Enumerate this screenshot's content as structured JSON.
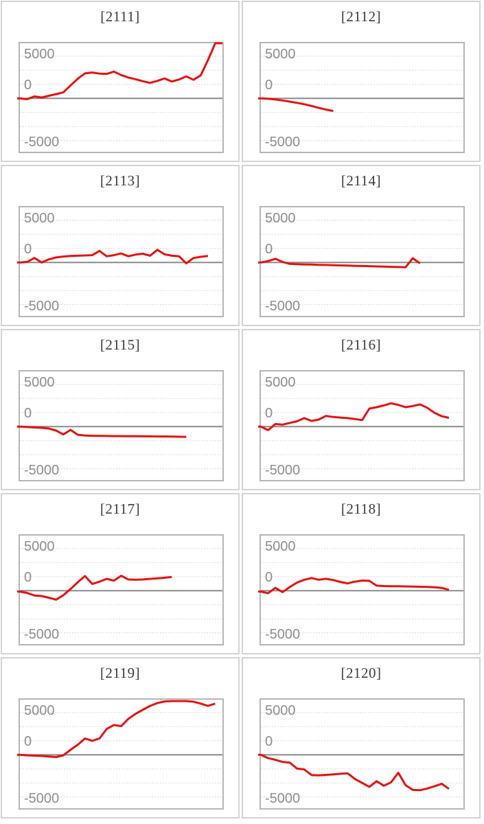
{
  "page": {
    "background": "#ffffff"
  },
  "colors": {
    "series_line": "#e8110f",
    "gridline": "#d8d8d8",
    "zero_line": "#8a8a8a",
    "plot_border": "#b5b5b5",
    "card_border": "#d3d3d3",
    "title_text": "#3b3b3b",
    "tick_text": "#8e8e8e"
  },
  "axis": {
    "tick_labels": [
      "5000",
      "0",
      "-5000"
    ],
    "ymax": 9800,
    "ymin": -9500,
    "grid_values": [
      7500,
      5000,
      2500,
      -2500,
      -5000,
      -7500
    ],
    "x_slots": 28,
    "grid_style": "dashed",
    "legend": "none"
  },
  "chart_data": [
    {
      "type": "line",
      "title": "[2111]",
      "ylim": [
        -9500,
        9800
      ],
      "yticks": [
        5000,
        0,
        -5000
      ],
      "values": [
        0,
        -150,
        350,
        150,
        450,
        750,
        1050,
        2300,
        3500,
        4450,
        4600,
        4400,
        4350,
        4750,
        4150,
        3700,
        3400,
        3050,
        2750,
        3100,
        3550,
        3000,
        3350,
        3900,
        3300,
        4100,
        6800,
        9800,
        9800
      ]
    },
    {
      "type": "line",
      "title": "[2112]",
      "ylim": [
        -9500,
        9800
      ],
      "yticks": [
        5000,
        0,
        -5000
      ],
      "values": [
        0,
        -80,
        -200,
        -380,
        -580,
        -800,
        -1050,
        -1350,
        -1700,
        -2000,
        -2250
      ]
    },
    {
      "type": "line",
      "title": "[2113]",
      "ylim": [
        -9500,
        9800
      ],
      "yticks": [
        5000,
        0,
        -5000
      ],
      "values": [
        0,
        100,
        800,
        0,
        550,
        900,
        1050,
        1150,
        1200,
        1250,
        1300,
        2050,
        1100,
        1300,
        1600,
        1100,
        1400,
        1550,
        1200,
        2250,
        1450,
        1200,
        1100,
        -150,
        800,
        1000,
        1150
      ]
    },
    {
      "type": "line",
      "title": "[2114]",
      "ylim": [
        -9500,
        9800
      ],
      "yticks": [
        5000,
        0,
        -5000
      ],
      "values": [
        0,
        250,
        650,
        100,
        -250,
        -300,
        -350,
        -380,
        -420,
        -450,
        -480,
        -520,
        -560,
        -600,
        -630,
        -660,
        -700,
        -740,
        -780,
        -820,
        -850,
        750,
        -150
      ]
    },
    {
      "type": "line",
      "title": "[2115]",
      "ylim": [
        -9500,
        9800
      ],
      "yticks": [
        5000,
        0,
        -5000
      ],
      "values": [
        0,
        -80,
        -150,
        -220,
        -350,
        -700,
        -1400,
        -600,
        -1450,
        -1600,
        -1630,
        -1650,
        -1670,
        -1690,
        -1700,
        -1710,
        -1720,
        -1730,
        -1740,
        -1750,
        -1760,
        -1780,
        -1800,
        -1830
      ]
    },
    {
      "type": "line",
      "title": "[2116]",
      "ylim": [
        -9500,
        9800
      ],
      "yticks": [
        5000,
        0,
        -5000
      ],
      "values": [
        0,
        -650,
        450,
        350,
        650,
        950,
        1500,
        1000,
        1250,
        1900,
        1700,
        1600,
        1500,
        1350,
        1150,
        3200,
        3450,
        3750,
        4150,
        3850,
        3450,
        3650,
        3950,
        3350,
        2450,
        1850,
        1550
      ]
    },
    {
      "type": "line",
      "title": "[2117]",
      "ylim": [
        -9500,
        9800
      ],
      "yticks": [
        5000,
        0,
        -5000
      ],
      "values": [
        -150,
        -400,
        -850,
        -950,
        -1250,
        -1600,
        -800,
        300,
        1500,
        2600,
        1200,
        1600,
        2100,
        1800,
        2650,
        2000,
        1950,
        2000,
        2100,
        2200,
        2300,
        2450
      ]
    },
    {
      "type": "line",
      "title": "[2118]",
      "ylim": [
        -9500,
        9800
      ],
      "yticks": [
        5000,
        0,
        -5000
      ],
      "values": [
        -150,
        -450,
        500,
        -250,
        650,
        1450,
        1950,
        2250,
        1950,
        2100,
        1900,
        1550,
        1300,
        1600,
        1800,
        1750,
        900,
        820,
        800,
        780,
        760,
        730,
        700,
        660,
        620,
        500,
        150
      ]
    },
    {
      "type": "line",
      "title": "[2119]",
      "ylim": [
        -9500,
        9800
      ],
      "yticks": [
        5000,
        0,
        -5000
      ],
      "values": [
        0,
        -100,
        -150,
        -200,
        -300,
        -400,
        -100,
        900,
        1800,
        2900,
        2500,
        2900,
        4600,
        5300,
        5100,
        6400,
        7300,
        8000,
        8700,
        9200,
        9500,
        9550,
        9550,
        9550,
        9450,
        9100,
        8700,
        9100
      ]
    },
    {
      "type": "line",
      "title": "[2120]",
      "ylim": [
        -9500,
        9800
      ],
      "yticks": [
        5000,
        0,
        -5000
      ],
      "values": [
        0,
        -600,
        -900,
        -1270,
        -1390,
        -2450,
        -2600,
        -3600,
        -3650,
        -3570,
        -3480,
        -3380,
        -3300,
        -4300,
        -5000,
        -5700,
        -4700,
        -5500,
        -4900,
        -3200,
        -5400,
        -6250,
        -6300,
        -6000,
        -5600,
        -5150,
        -6050
      ]
    }
  ]
}
